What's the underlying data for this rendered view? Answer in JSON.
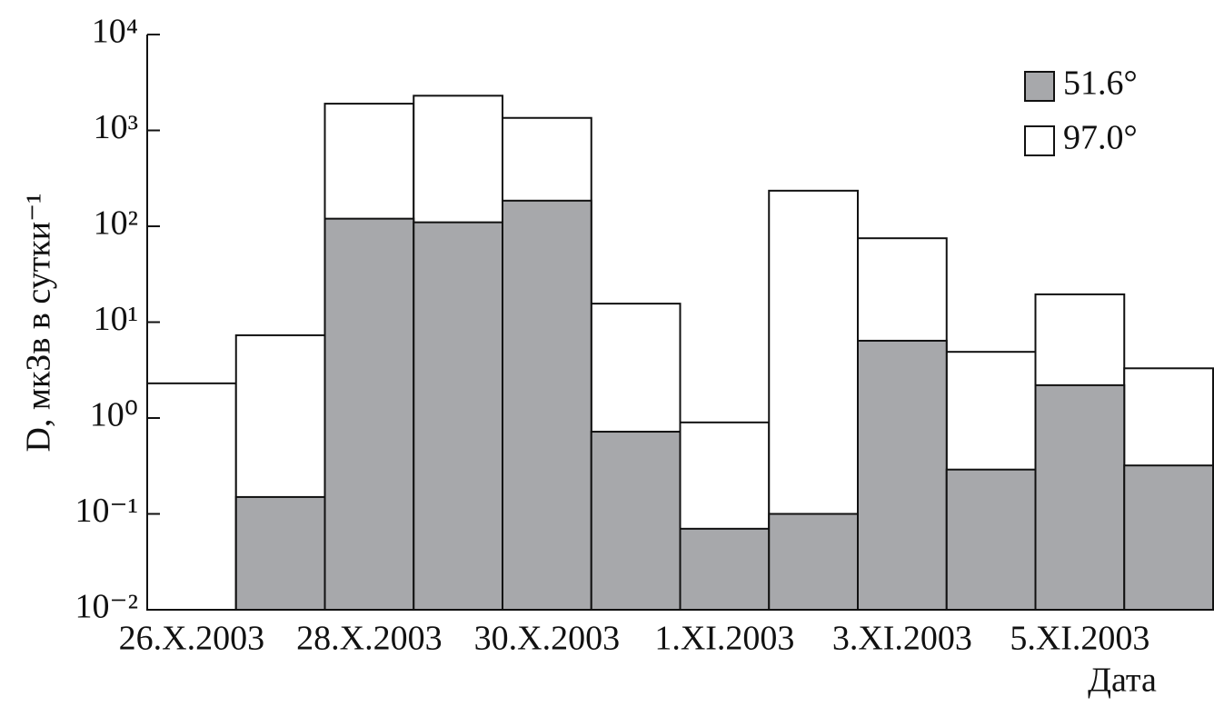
{
  "chart_data": {
    "type": "bar",
    "log_scale": true,
    "ylabel": "D, мкЗв в сутки⁻¹",
    "xlabel": "Дата",
    "categories": [
      "26.X.2003",
      null,
      "28.X.2003",
      null,
      "30.X.2003",
      null,
      "1.XI.2003",
      null,
      "3.XI.2003",
      null,
      "5.XI.2003",
      null
    ],
    "series": [
      {
        "name": "51.6°",
        "color": "#a7a8ab",
        "values": [
          null,
          0.15,
          120,
          110,
          185,
          0.72,
          0.07,
          0.1,
          6.4,
          0.29,
          2.2,
          0.32
        ]
      },
      {
        "name": "97.0°",
        "color": "#ffffff",
        "values": [
          2.3,
          7.3,
          1900,
          2300,
          1350,
          15.6,
          0.9,
          235,
          75,
          4.9,
          19.5,
          3.3
        ]
      }
    ],
    "ylim": [
      0.01,
      10000
    ],
    "yticks": [
      {
        "value": 0.01,
        "label": "10⁻²"
      },
      {
        "value": 0.1,
        "label": "10⁻¹"
      },
      {
        "value": 1,
        "label": "10⁰"
      },
      {
        "value": 10,
        "label": "10¹"
      },
      {
        "value": 100,
        "label": "10²"
      },
      {
        "value": 1000,
        "label": "10³"
      },
      {
        "value": 10000,
        "label": "10⁴"
      }
    ],
    "legend": "upper right"
  }
}
